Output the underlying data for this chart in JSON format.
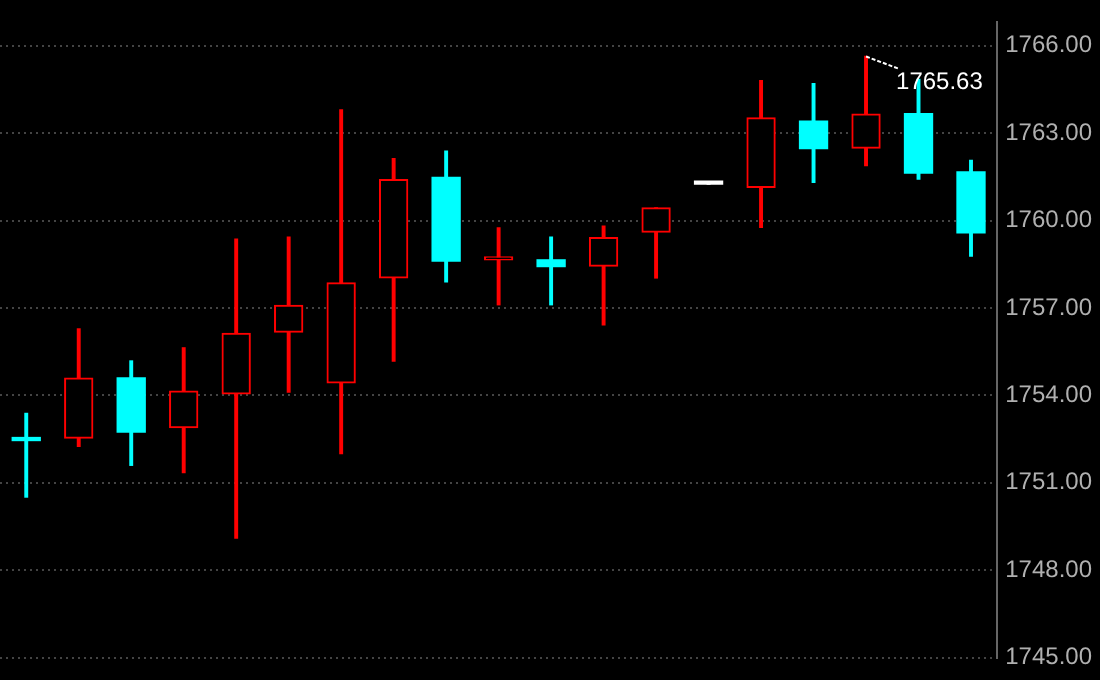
{
  "chart_data": {
    "type": "candlestick",
    "categories": [
      null,
      null,
      null,
      null,
      null,
      null,
      null,
      null,
      null,
      null,
      null,
      null,
      null,
      null,
      null,
      null,
      null,
      null,
      null
    ],
    "ohlc": [
      [
        1752.55,
        1753.38,
        1750.51,
        1752.45
      ],
      [
        1752.53,
        1756.28,
        1752.25,
        1754.59
      ],
      [
        1754.6,
        1755.18,
        1751.6,
        1752.74
      ],
      [
        1752.89,
        1755.63,
        1751.35,
        1754.14
      ],
      [
        1754.05,
        1759.36,
        1749.1,
        1756.13
      ],
      [
        1756.17,
        1759.43,
        1754.11,
        1757.09
      ],
      [
        1754.43,
        1763.8,
        1752.0,
        1757.86
      ],
      [
        1758.03,
        1762.12,
        1755.18,
        1761.4
      ],
      [
        1761.48,
        1762.38,
        1757.9,
        1758.61
      ],
      [
        1758.65,
        1759.75,
        1757.11,
        1758.69
      ],
      [
        1758.65,
        1759.43,
        1757.11,
        1758.42
      ],
      [
        1758.44,
        1759.81,
        1756.42,
        1759.41
      ],
      [
        1759.6,
        1760.43,
        1758.03,
        1760.43
      ],
      [
        1761.29,
        1761.29,
        1761.25,
        1761.25
      ],
      [
        1761.14,
        1764.8,
        1759.77,
        1763.52
      ],
      [
        1763.41,
        1764.7,
        1761.31,
        1762.47
      ],
      [
        1762.49,
        1765.63,
        1761.89,
        1763.65
      ],
      [
        1763.67,
        1764.84,
        1761.42,
        1761.63
      ],
      [
        1761.67,
        1762.06,
        1758.78,
        1759.58
      ]
    ],
    "colors": [
      "#00ffff",
      "#ff0000",
      "#00ffff",
      "#ff0000",
      "#ff0000",
      "#ff0000",
      "#ff0000",
      "#ff0000",
      "#00ffff",
      "#ff0000",
      "#00ffff",
      "#ff0000",
      "#ff0000",
      "#ffffff",
      "#ff0000",
      "#00ffff",
      "#ff0000",
      "#00ffff",
      "#00ffff"
    ],
    "ylim": [
      1745,
      1766.8
    ],
    "yticks": [
      {
        "value": 1745,
        "label": "1745.00"
      },
      {
        "value": 1748,
        "label": "1748.00"
      },
      {
        "value": 1751,
        "label": "1751.00"
      },
      {
        "value": 1754,
        "label": "1754.00"
      },
      {
        "value": 1757,
        "label": "1757.00"
      },
      {
        "value": 1760,
        "label": "1760.00"
      },
      {
        "value": 1763,
        "label": "1763.00"
      },
      {
        "value": 1766,
        "label": "1766.00"
      }
    ],
    "grid": "y",
    "tick_labels": "y",
    "legend": false,
    "annotations": [
      "1765.63"
    ]
  }
}
